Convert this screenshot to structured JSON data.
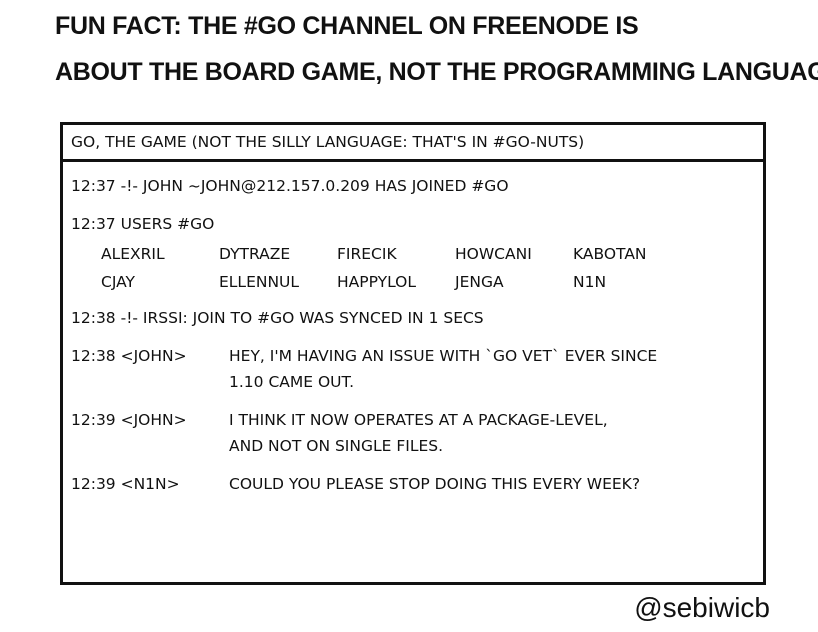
{
  "header": {
    "title": [
      "FUN FACT: THE #GO CHANNEL ON FREENODE IS",
      "ABOUT THE BOARD GAME, NOT THE PROGRAMMING LANGUAGE."
    ]
  },
  "window": {
    "title": "GO, THE GAME (NOT THE SILLY LANGUAGE: THAT'S IN #GO-NUTS)",
    "log": [
      {
        "prefix": "12:37 -!- JOHN ~JOHN@212.157.0.209 HAS JOINED #GO",
        "lines": []
      },
      {
        "prefix": "12:37 USERS #GO",
        "lines": []
      },
      {
        "prefix": "12:38 -!- IRSSI: JOIN TO #GO WAS SYNCED IN 1 SECS",
        "lines": []
      },
      {
        "prefix": "12:38 <JOHN>",
        "lines": [
          "HEY, I'M HAVING AN ISSUE WITH `GO VET` EVER SINCE",
          "1.10 CAME OUT."
        ]
      },
      {
        "prefix": "12:39 <JOHN>",
        "lines": [
          "I THINK IT NOW OPERATES AT A PACKAGE-LEVEL,",
          "AND NOT ON SINGLE FILES."
        ]
      },
      {
        "prefix": "12:39 <N1N>",
        "lines": [
          "COULD YOU PLEASE STOP DOING THIS EVERY WEEK?"
        ]
      }
    ],
    "users": [
      "ALEXRIL",
      "DYTRAZE",
      "FIRECIK",
      "HOWCANI",
      "KABOTAN",
      "CJAY",
      "ELLENNUL",
      "HAPPYLOL",
      "JENGA",
      "N1N"
    ]
  },
  "credit": "@sebiwicb"
}
